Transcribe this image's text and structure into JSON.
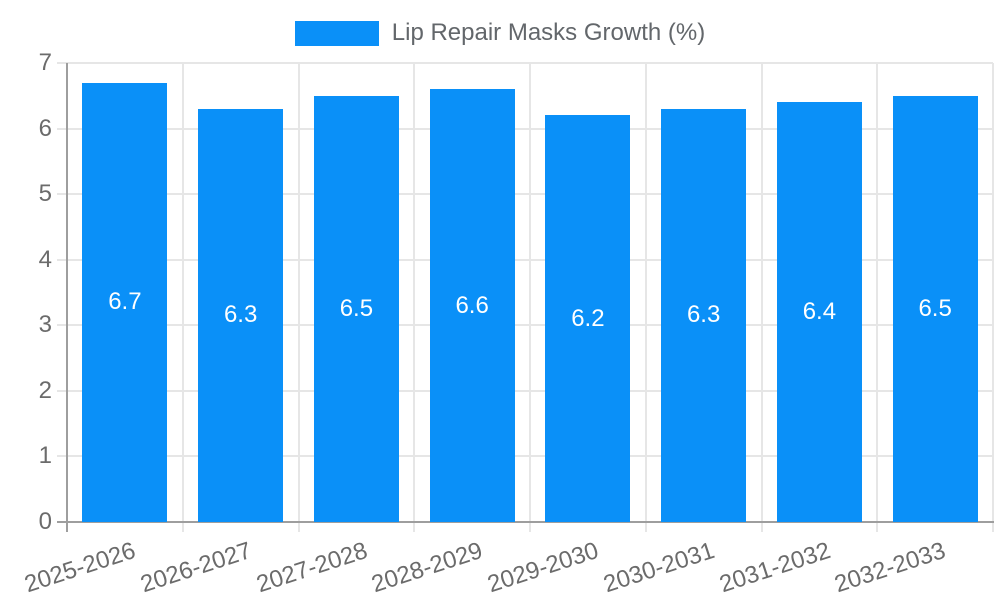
{
  "legend": {
    "label": "Lip Repair Masks Growth (%)"
  },
  "chart_data": {
    "type": "bar",
    "title": "Lip Repair Masks Growth (%)",
    "categories": [
      "2025-2026",
      "2026-2027",
      "2027-2028",
      "2028-2029",
      "2029-2030",
      "2030-2031",
      "2031-2032",
      "2032-2033"
    ],
    "values": [
      6.7,
      6.3,
      6.5,
      6.6,
      6.2,
      6.3,
      6.4,
      6.5
    ],
    "series": [
      {
        "name": "Lip Repair Masks Growth (%)",
        "values": [
          6.7,
          6.3,
          6.5,
          6.6,
          6.2,
          6.3,
          6.4,
          6.5
        ]
      }
    ],
    "xlabel": "",
    "ylabel": "",
    "ylim": [
      0,
      7
    ],
    "y_ticks": [
      0,
      1,
      2,
      3,
      4,
      5,
      6,
      7
    ],
    "grid": true,
    "legend_position": "top",
    "bar_color": "#0A90F8",
    "value_label_color": "#ffffff",
    "axis_text_color": "#6b6b6b"
  }
}
